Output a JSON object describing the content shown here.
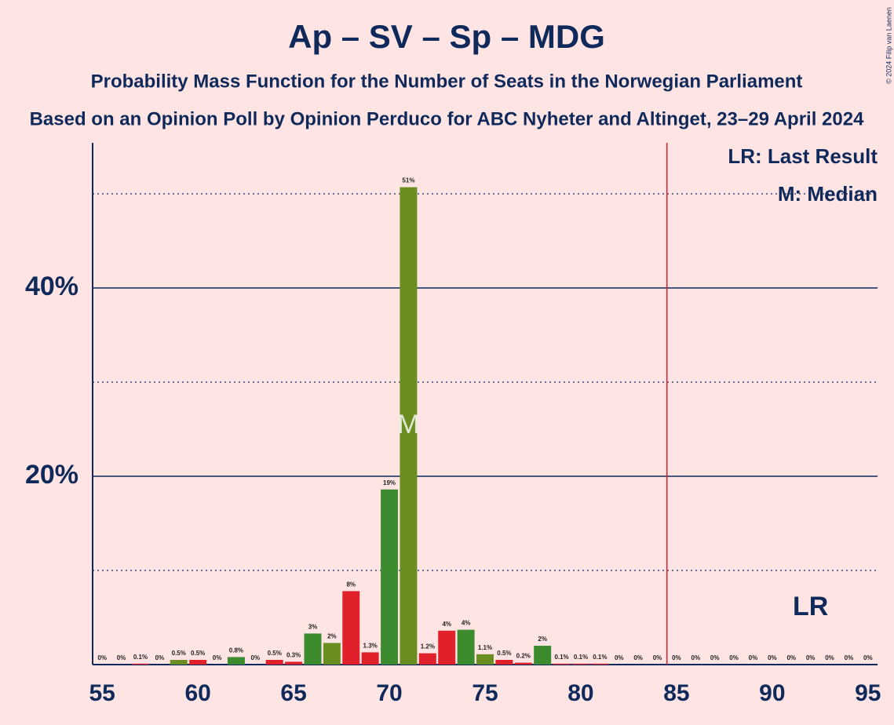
{
  "chart_data": {
    "type": "bar",
    "title": "Ap – SV – Sp – MDG",
    "subtitle": "Probability Mass Function for the Number of Seats in the Norwegian Parliament",
    "subtitle2": "Based on an Opinion Poll by Opinion Perduco for ABC Nyheter and Altinget, 23–29 April 2024",
    "copyright": "© 2024 Filip van Laenen",
    "categories": [
      55,
      56,
      57,
      58,
      59,
      60,
      61,
      62,
      63,
      64,
      65,
      66,
      67,
      68,
      69,
      70,
      71,
      72,
      73,
      74,
      75,
      76,
      77,
      78,
      79,
      80,
      81,
      82,
      83,
      84,
      85,
      86,
      87,
      88,
      89,
      90,
      91,
      92,
      93,
      94,
      95
    ],
    "values": [
      0,
      0,
      0.1,
      0,
      0.5,
      0.5,
      0,
      0.8,
      0,
      0.5,
      0.3,
      3.3,
      2.3,
      7.8,
      1.3,
      18.6,
      50.7,
      1.2,
      3.6,
      3.7,
      1.1,
      0.5,
      0.2,
      2.0,
      0.1,
      0.1,
      0.1,
      0,
      0,
      0,
      0,
      0,
      0,
      0,
      0,
      0,
      0,
      0,
      0,
      0,
      0
    ],
    "value_labels": [
      "0%",
      "0%",
      "0.1%",
      "0%",
      "0.5%",
      "0.5%",
      "0%",
      "0.8%",
      "0%",
      "0.5%",
      "0.3%",
      "3%",
      "2%",
      "8%",
      "1.3%",
      "19%",
      "51%",
      "1.2%",
      "4%",
      "4%",
      "1.1%",
      "0.5%",
      "0.2%",
      "2%",
      "0.1%",
      "0.1%",
      "0.1%",
      "0%",
      "0%",
      "0%",
      "0%",
      "0%",
      "0%",
      "0%",
      "0%",
      "0%",
      "0%",
      "0%",
      "0%",
      "0%",
      "0%"
    ],
    "colors": [
      "#e0202a",
      "#e0202a",
      "#e0202a",
      "#e0202a",
      "#6b8e23",
      "#e0202a",
      "#e0202a",
      "#3d8b2f",
      "#e0202a",
      "#e0202a",
      "#e0202a",
      "#3d8b2f",
      "#6b8e23",
      "#e0202a",
      "#e0202a",
      "#3d8b2f",
      "#6b8e23",
      "#e0202a",
      "#e0202a",
      "#3d8b2f",
      "#6b8e23",
      "#e0202a",
      "#e0202a",
      "#3d8b2f",
      "#e0202a",
      "#e0202a",
      "#e0202a",
      "#e0202a",
      "#e0202a",
      "#e0202a",
      "#e0202a",
      "#e0202a",
      "#e0202a",
      "#e0202a",
      "#e0202a",
      "#e0202a",
      "#e0202a",
      "#e0202a",
      "#e0202a",
      "#e0202a",
      "#e0202a"
    ],
    "xlim": [
      54.5,
      95.5
    ],
    "xticks": [
      55,
      60,
      65,
      70,
      75,
      80,
      85,
      90,
      95
    ],
    "ylim": [
      0,
      55
    ],
    "yticks": [
      {
        "value": 20,
        "label": "20%"
      },
      {
        "value": 40,
        "label": "40%"
      }
    ],
    "minor_yticks": [
      10,
      30,
      50
    ],
    "majority": 85,
    "median": {
      "label": "M",
      "seat": 71
    },
    "last_result": {
      "label": "LR",
      "seat": 92
    },
    "legend": [
      "LR: Last Result",
      "M: Median"
    ]
  }
}
